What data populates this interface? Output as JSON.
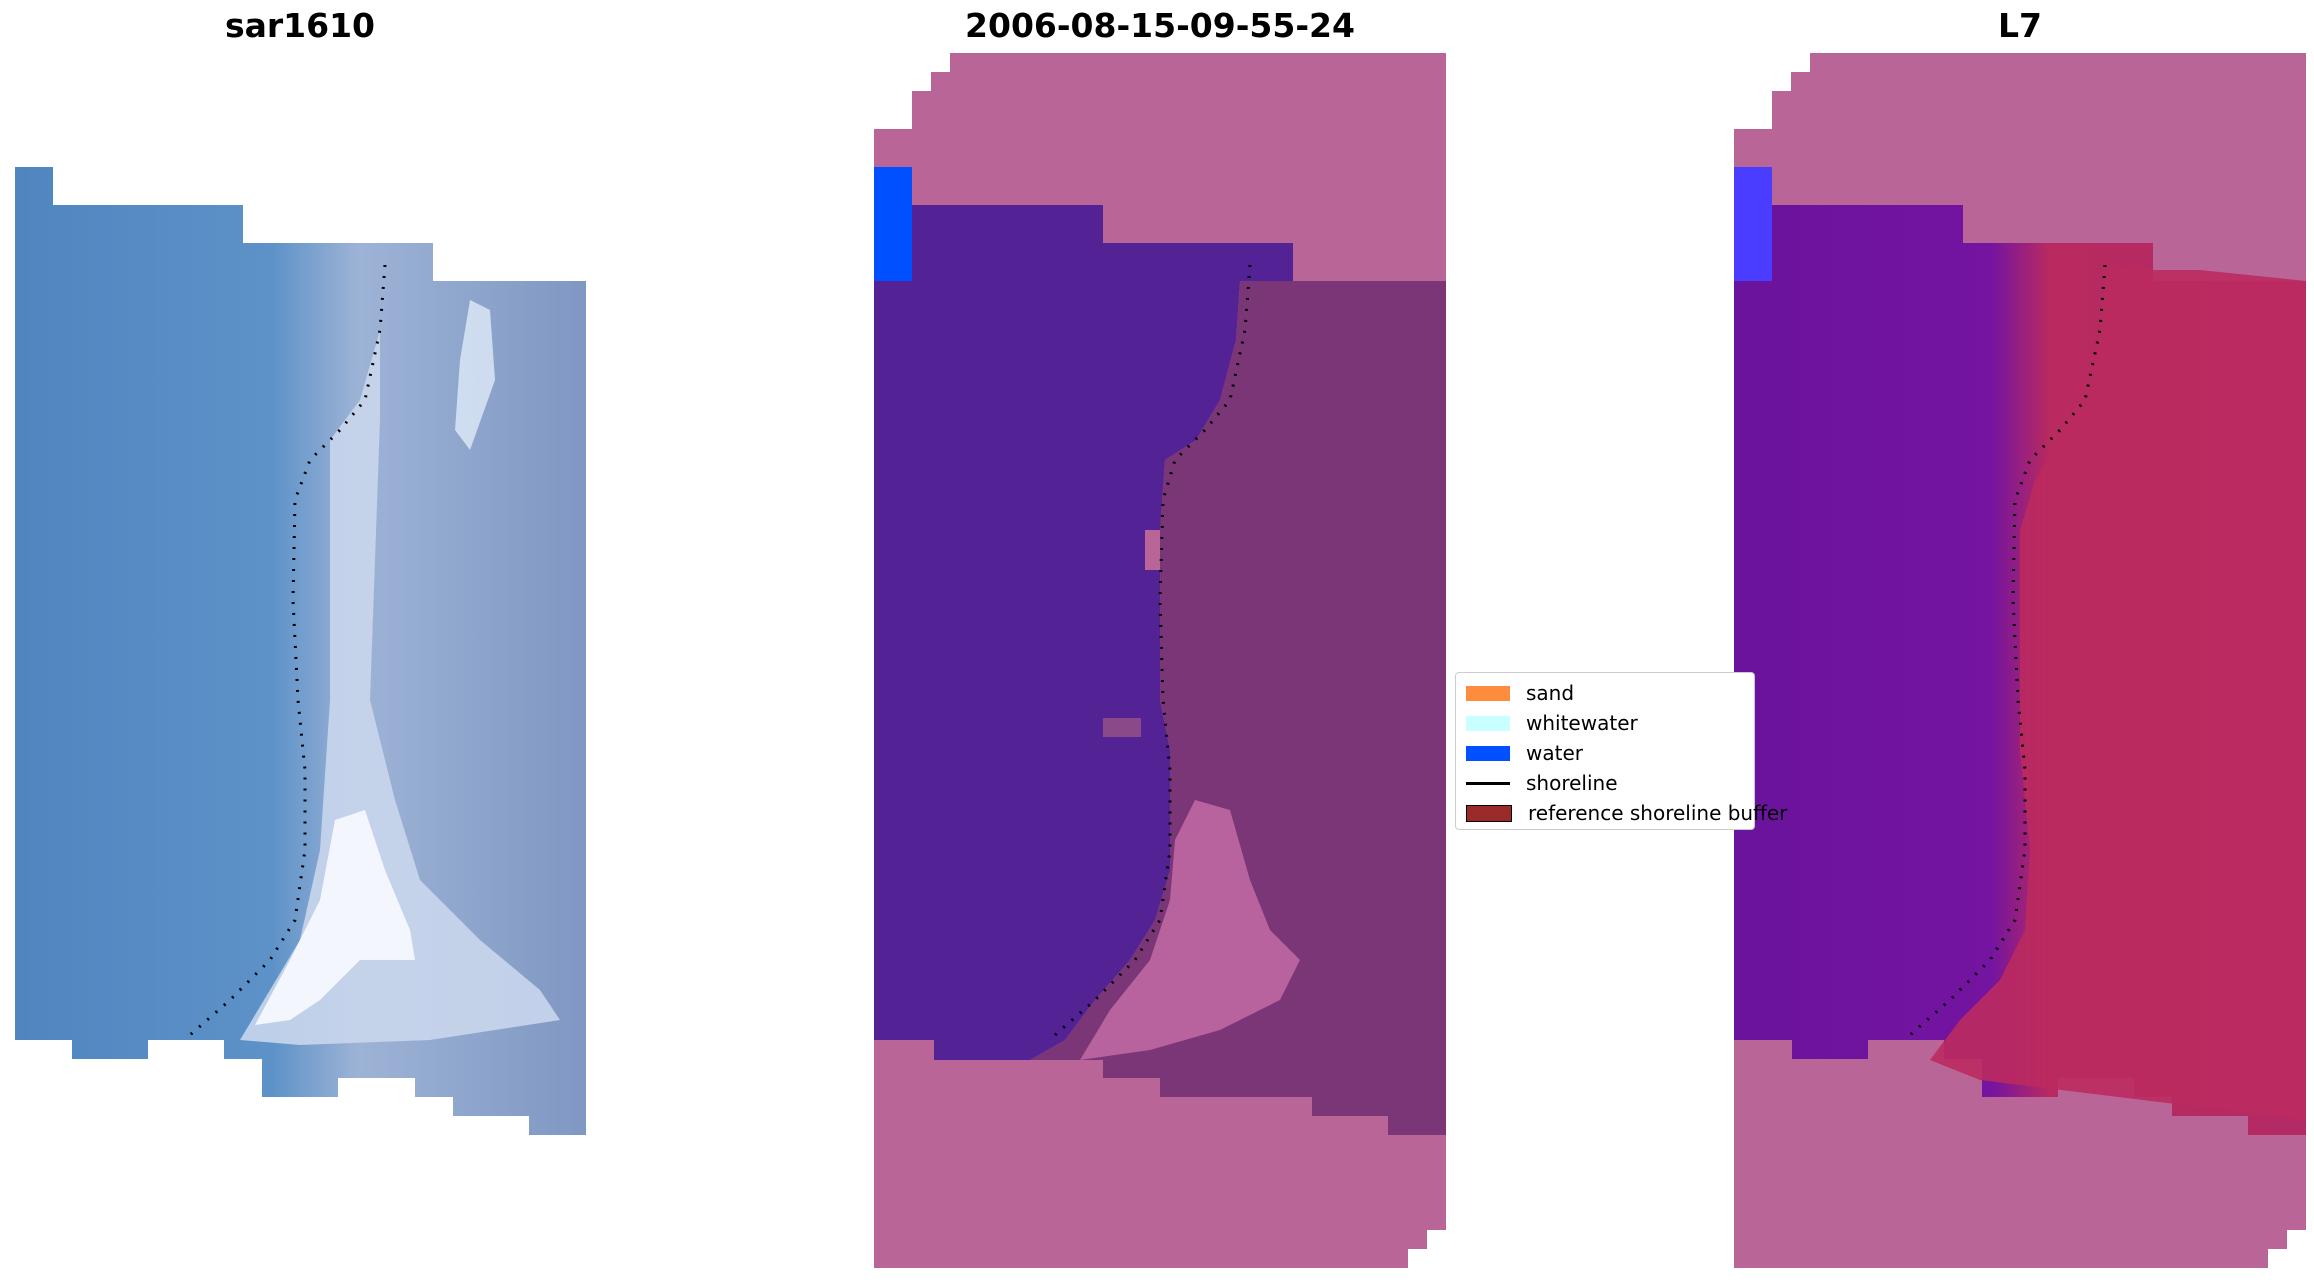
{
  "panels": [
    {
      "title": "sar1610"
    },
    {
      "title": "2006-08-15-09-55-24"
    },
    {
      "title": "L7"
    }
  ],
  "legend": {
    "items": [
      {
        "label": "sand",
        "color": "#ff8c3c"
      },
      {
        "label": "whitewater",
        "color": "#c8ffff"
      },
      {
        "label": "water",
        "color": "#0050ff"
      },
      {
        "label": "shoreline",
        "color": "#000000"
      },
      {
        "label": "reference shoreline buffer",
        "color": "#9b2b2b"
      }
    ]
  },
  "colors": {
    "rgb_water": "#4f86c0",
    "rgb_land": "#7f97c2",
    "rgb_surf": "#eaf1fb",
    "class_water": "#532294",
    "class_nodata": "#b96597",
    "class_land": "#7b3677",
    "class_surf": "#c36aa4",
    "index_water": "#6a139d",
    "index_land": "#b82a60"
  }
}
